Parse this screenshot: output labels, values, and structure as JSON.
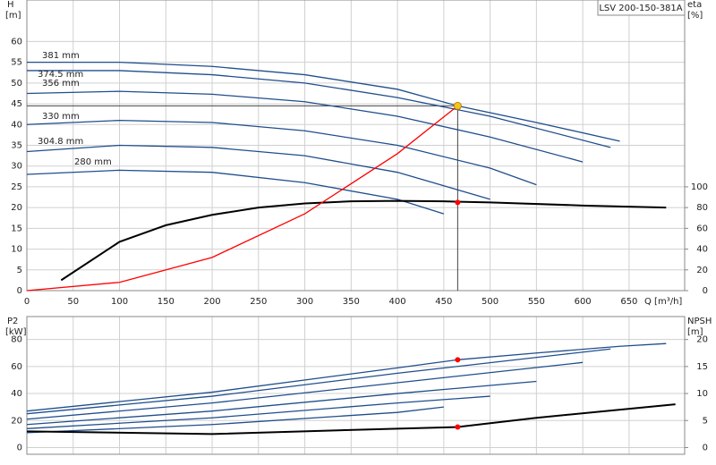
{
  "chart_data": [
    {
      "type": "line",
      "title": "LSV 200-150-381A",
      "y_label": "H",
      "y_unit": "[m]",
      "y2_label": "eta",
      "y2_unit": "[%]",
      "x_label": "Q [m³/h]",
      "xlim": [
        0,
        710
      ],
      "xticks": [
        0,
        50,
        100,
        150,
        200,
        250,
        300,
        350,
        400,
        450,
        500,
        550,
        600,
        650
      ],
      "ylim": [
        0,
        70
      ],
      "yticks": [
        0,
        5,
        10,
        15,
        20,
        25,
        30,
        35,
        40,
        45,
        50,
        55,
        60
      ],
      "y2lim": [
        0,
        280
      ],
      "y2ticks": [
        0,
        20,
        40,
        60,
        80,
        100
      ],
      "grid": true,
      "series": [
        {
          "name": "381 mm",
          "color": "#1f4e8c",
          "x": [
            0,
            100,
            200,
            300,
            400,
            465,
            550,
            640
          ],
          "values": [
            55,
            55,
            54,
            52,
            48.5,
            44.5,
            40.5,
            36
          ]
        },
        {
          "name": "374.5 mm",
          "color": "#1f4e8c",
          "x": [
            0,
            100,
            200,
            300,
            400,
            500,
            630
          ],
          "values": [
            53,
            53,
            52,
            50,
            46.5,
            42,
            34.5
          ]
        },
        {
          "name": "356 mm",
          "color": "#1f4e8c",
          "x": [
            0,
            100,
            200,
            300,
            400,
            500,
            600
          ],
          "values": [
            47.5,
            48,
            47.3,
            45.5,
            42,
            37,
            31
          ]
        },
        {
          "name": "330 mm",
          "color": "#1f4e8c",
          "x": [
            0,
            100,
            200,
            300,
            400,
            500,
            550
          ],
          "values": [
            40,
            41,
            40.5,
            38.5,
            35,
            29.5,
            25.5
          ]
        },
        {
          "name": "304.8 mm",
          "color": "#1f4e8c",
          "x": [
            0,
            100,
            200,
            300,
            400,
            500
          ],
          "values": [
            33.5,
            35,
            34.5,
            32.5,
            28.5,
            22
          ]
        },
        {
          "name": "280 mm",
          "color": "#1f4e8c",
          "x": [
            0,
            100,
            200,
            300,
            400,
            450
          ],
          "values": [
            28,
            29,
            28.5,
            26,
            22,
            18.5
          ]
        },
        {
          "color": "#000000",
          "axis": "y2",
          "x": [
            37,
            100,
            150,
            200,
            250,
            300,
            350,
            400,
            450,
            500,
            600,
            690
          ],
          "values": [
            10,
            47,
            63,
            73,
            80,
            84,
            86,
            86.5,
            86,
            85,
            82,
            80
          ]
        },
        {
          "color": "#ff0000",
          "x": [
            0,
            100,
            200,
            300,
            400,
            465
          ],
          "values": [
            0,
            2,
            8,
            18.5,
            33,
            44.5
          ]
        }
      ],
      "duty_point": {
        "x": 465,
        "y": 44.5,
        "y2": 85
      }
    },
    {
      "type": "line",
      "y_label": "P2",
      "y_unit": "[kW]",
      "y2_label": "NPSH",
      "y2_unit": "[m]",
      "xlim": [
        0,
        710
      ],
      "xticks": [
        0,
        50,
        100,
        150,
        200,
        250,
        300,
        350,
        400,
        450,
        500,
        550,
        600,
        650
      ],
      "ylim": [
        -5,
        97
      ],
      "yticks": [
        0,
        20,
        40,
        60,
        80
      ],
      "y2lim": [
        -1.25,
        24.25
      ],
      "y2ticks": [
        0,
        5,
        10,
        15,
        20
      ],
      "grid": true,
      "series": [
        {
          "color": "#1f4e8c",
          "x": [
            0,
            200,
            400,
            465,
            550,
            640,
            690
          ],
          "values": [
            27,
            41,
            59,
            65,
            70,
            75,
            77
          ]
        },
        {
          "color": "#1f4e8c",
          "x": [
            0,
            200,
            400,
            630
          ],
          "values": [
            25,
            38,
            55,
            73
          ]
        },
        {
          "color": "#1f4e8c",
          "x": [
            0,
            200,
            400,
            600
          ],
          "values": [
            21,
            33,
            48,
            63
          ]
        },
        {
          "color": "#1f4e8c",
          "x": [
            0,
            200,
            400,
            550
          ],
          "values": [
            17,
            27,
            40,
            49
          ]
        },
        {
          "color": "#1f4e8c",
          "x": [
            0,
            200,
            400,
            500
          ],
          "values": [
            14,
            22,
            33,
            38
          ]
        },
        {
          "color": "#1f4e8c",
          "x": [
            0,
            200,
            400,
            450
          ],
          "values": [
            11,
            17,
            26,
            30
          ]
        },
        {
          "color": "#000000",
          "axis": "y2",
          "x": [
            0,
            200,
            400,
            465,
            550,
            700
          ],
          "values": [
            3,
            2.5,
            3.5,
            3.8,
            5.5,
            8
          ]
        }
      ],
      "duty_point": {
        "x": 465,
        "y": 65,
        "y2": 3.8
      }
    }
  ]
}
